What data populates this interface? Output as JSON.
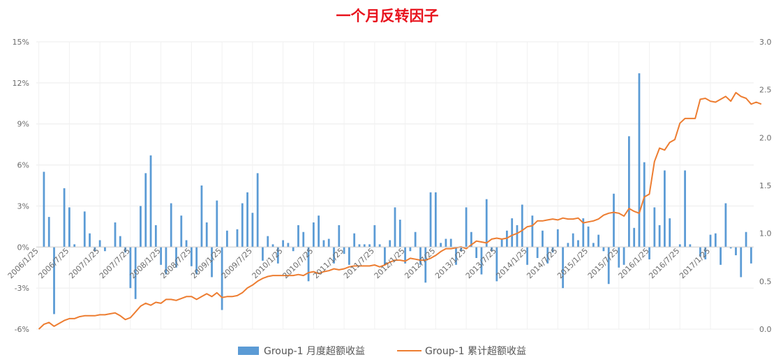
{
  "chart_data": {
    "type": "bar",
    "title": "一个月反转因子",
    "y_left_ticks": [
      "15%",
      "12%",
      "9%",
      "6%",
      "3%",
      "0%",
      "-3%",
      "-6%"
    ],
    "y_left_range": [
      -6,
      15
    ],
    "y_right_ticks": [
      "3.0",
      "2.5",
      "2.0",
      "1.5",
      "1.0",
      "0.5",
      "0.0"
    ],
    "y_right_range": [
      0,
      3
    ],
    "x_tick_labels": [
      "2006/1/25",
      "2006/7/25",
      "2007/1/25",
      "2007/7/25",
      "2008/1/25",
      "2008/7/25",
      "2009/1/25",
      "2009/7/25",
      "2010/1/25",
      "2010/7/25",
      "2011/1/25",
      "2011/7/25",
      "2012/1/25",
      "2012/7/25",
      "2013/1/25",
      "2013/7/25",
      "2014/1/25",
      "2014/7/25",
      "2015/1/25",
      "2015/7/25",
      "2016/1/25",
      "2016/7/25",
      "2017/1/25"
    ],
    "months_start": "2006/1/25",
    "series": [
      {
        "name": "Group-1 月度超额收益",
        "type": "bar",
        "axis": "left",
        "color": "#5b9bd5",
        "values": [
          0.0,
          5.5,
          2.2,
          -4.9,
          0.0,
          4.3,
          2.9,
          0.2,
          0.0,
          2.6,
          1.0,
          -0.3,
          0.5,
          -0.3,
          0.0,
          1.8,
          0.8,
          -0.4,
          -3.0,
          -3.8,
          3.0,
          5.4,
          6.7,
          1.6,
          -1.3,
          -2.0,
          3.2,
          -1.5,
          2.3,
          0.5,
          -1.4,
          -2.0,
          4.5,
          1.8,
          -2.2,
          3.4,
          -4.6,
          1.2,
          0.0,
          1.3,
          3.2,
          4.0,
          2.5,
          5.4,
          -1.0,
          0.8,
          0.2,
          -1.2,
          0.5,
          0.3,
          -0.3,
          1.6,
          1.1,
          -2.5,
          1.8,
          2.3,
          0.5,
          0.6,
          -1.2,
          1.6,
          -0.5,
          -1.3,
          1.0,
          0.2,
          0.2,
          0.2,
          1.6,
          0.2,
          -1.3,
          0.5,
          2.9,
          2.0,
          -1.2,
          -0.3,
          1.1,
          -1.3,
          -2.6,
          4.0,
          4.0,
          0.3,
          0.6,
          0.6,
          -1.3,
          -0.3,
          2.9,
          1.1,
          -0.8,
          -2.0,
          3.5,
          -0.3,
          -2.5,
          0.6,
          1.2,
          2.1,
          1.6,
          3.1,
          -1.3,
          2.3,
          -0.8,
          1.2,
          -1.2,
          -0.4,
          1.3,
          -3.0,
          0.3,
          1.0,
          0.5,
          2.1,
          1.5,
          0.3,
          0.9,
          -0.3,
          -2.7,
          3.9,
          -1.5,
          -1.3,
          8.1,
          1.4,
          12.7,
          6.2,
          -0.9,
          2.9,
          1.6,
          5.6,
          2.1,
          0.0,
          0.2,
          5.6,
          0.2,
          0.0,
          -0.7,
          -0.9,
          0.9,
          1.0,
          -1.3,
          3.2,
          -0.1,
          -0.6,
          -2.2,
          1.1,
          -1.2
        ]
      },
      {
        "name": "Group-1 累计超额收益",
        "type": "line",
        "axis": "right",
        "color": "#ed7d31",
        "values": [
          0.0,
          0.05,
          0.07,
          0.03,
          0.06,
          0.09,
          0.11,
          0.11,
          0.13,
          0.14,
          0.14,
          0.14,
          0.15,
          0.15,
          0.16,
          0.17,
          0.14,
          0.1,
          0.12,
          0.18,
          0.24,
          0.27,
          0.25,
          0.28,
          0.27,
          0.31,
          0.31,
          0.3,
          0.32,
          0.34,
          0.34,
          0.31,
          0.34,
          0.37,
          0.34,
          0.38,
          0.33,
          0.34,
          0.34,
          0.35,
          0.38,
          0.43,
          0.46,
          0.5,
          0.53,
          0.55,
          0.56,
          0.56,
          0.56,
          0.56,
          0.56,
          0.57,
          0.56,
          0.59,
          0.6,
          0.58,
          0.6,
          0.61,
          0.63,
          0.62,
          0.63,
          0.65,
          0.66,
          0.66,
          0.66,
          0.66,
          0.67,
          0.65,
          0.67,
          0.7,
          0.72,
          0.72,
          0.71,
          0.74,
          0.73,
          0.72,
          0.72,
          0.74,
          0.77,
          0.81,
          0.84,
          0.84,
          0.85,
          0.86,
          0.84,
          0.88,
          0.92,
          0.91,
          0.9,
          0.94,
          0.95,
          0.94,
          0.95,
          0.98,
          1.0,
          1.03,
          1.07,
          1.08,
          1.13,
          1.13,
          1.14,
          1.15,
          1.14,
          1.16,
          1.15,
          1.15,
          1.16,
          1.11,
          1.12,
          1.13,
          1.15,
          1.19,
          1.21,
          1.22,
          1.21,
          1.18,
          1.26,
          1.23,
          1.21,
          1.38,
          1.41,
          1.75,
          1.89,
          1.87,
          1.95,
          1.98,
          2.15,
          2.2,
          2.2,
          2.2,
          2.4,
          2.41,
          2.38,
          2.37,
          2.4,
          2.43,
          2.38,
          2.47,
          2.43,
          2.41,
          2.35,
          2.37,
          2.35
        ]
      }
    ],
    "legend_position": "bottom-center",
    "grid": true
  }
}
